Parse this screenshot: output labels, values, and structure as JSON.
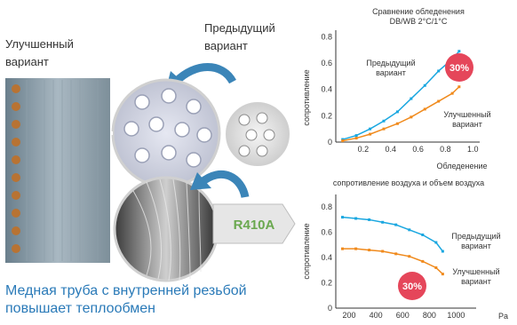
{
  "left_panel": {
    "label_improved_1": "Улучшенный",
    "label_improved_2": "вариант",
    "label_previous_1": "Предыдущий",
    "label_previous_2": "вариант",
    "r410a_badge": "R410A",
    "caption_line1": "Медная труба с внутренней резьбой",
    "caption_line2": "повышает теплообмен"
  },
  "colors": {
    "previous_series": "#1aa7e0",
    "improved_series": "#f08a1c",
    "badge_red": "#e5465a",
    "badge_green": "#6aa84f",
    "caption_blue": "#2a7ab8",
    "arrow_blue": "#3b85b8"
  },
  "chart_data": [
    {
      "type": "line",
      "title_line1": "Сравнение обледенения",
      "title_line2": "DB/WB 2°C/1°C",
      "xlabel": "Обледенение",
      "ylabel": "сопротивление",
      "xlim": [
        0,
        1.05
      ],
      "ylim": [
        0,
        0.85
      ],
      "xticks": [
        "0.2",
        "0.4",
        "0.6",
        "0.8",
        "1.0"
      ],
      "yticks": [
        "0",
        "0.2",
        "0.4",
        "0.6",
        "0.8"
      ],
      "x_tick_values": [
        0.2,
        0.4,
        0.6,
        0.8,
        1.0
      ],
      "y_tick_values": [
        0,
        0.2,
        0.4,
        0.6,
        0.8
      ],
      "series": [
        {
          "name_line1": "Предыдущий",
          "name_line2": "вариант",
          "x": [
            0.05,
            0.15,
            0.25,
            0.35,
            0.45,
            0.55,
            0.65,
            0.75,
            0.85,
            0.9
          ],
          "values": [
            0.02,
            0.05,
            0.1,
            0.16,
            0.23,
            0.33,
            0.43,
            0.54,
            0.63,
            0.69
          ]
        },
        {
          "name_line1": "Улучшенный",
          "name_line2": "вариант",
          "x": [
            0.05,
            0.15,
            0.25,
            0.35,
            0.45,
            0.55,
            0.65,
            0.75,
            0.85,
            0.9
          ],
          "values": [
            0.01,
            0.03,
            0.06,
            0.1,
            0.14,
            0.19,
            0.25,
            0.31,
            0.37,
            0.42
          ]
        }
      ],
      "badge": "30%"
    },
    {
      "type": "line",
      "title": "сопротивление воздуха и объем воздуха",
      "xlabel": "Pa",
      "ylabel": "сопротивление",
      "xlim": [
        100,
        1150
      ],
      "ylim": [
        0,
        0.9
      ],
      "xticks": [
        "200",
        "400",
        "600",
        "800",
        "1000"
      ],
      "yticks": [
        "0",
        "0.2",
        "0.4",
        "0.6",
        "0.8"
      ],
      "x_tick_values": [
        200,
        400,
        600,
        800,
        1000
      ],
      "y_tick_values": [
        0,
        0.2,
        0.4,
        0.6,
        0.8
      ],
      "series": [
        {
          "name_line1": "Предыдущий",
          "name_line2": "вариант",
          "x": [
            150,
            250,
            350,
            450,
            550,
            650,
            750,
            850,
            900
          ],
          "values": [
            0.72,
            0.71,
            0.7,
            0.68,
            0.66,
            0.62,
            0.58,
            0.52,
            0.45
          ]
        },
        {
          "name_line1": "Улучшенный",
          "name_line2": "вариант",
          "x": [
            150,
            250,
            350,
            450,
            550,
            650,
            750,
            850,
            900
          ],
          "values": [
            0.47,
            0.47,
            0.46,
            0.45,
            0.43,
            0.41,
            0.37,
            0.32,
            0.27
          ]
        }
      ],
      "badge": "30%"
    }
  ]
}
